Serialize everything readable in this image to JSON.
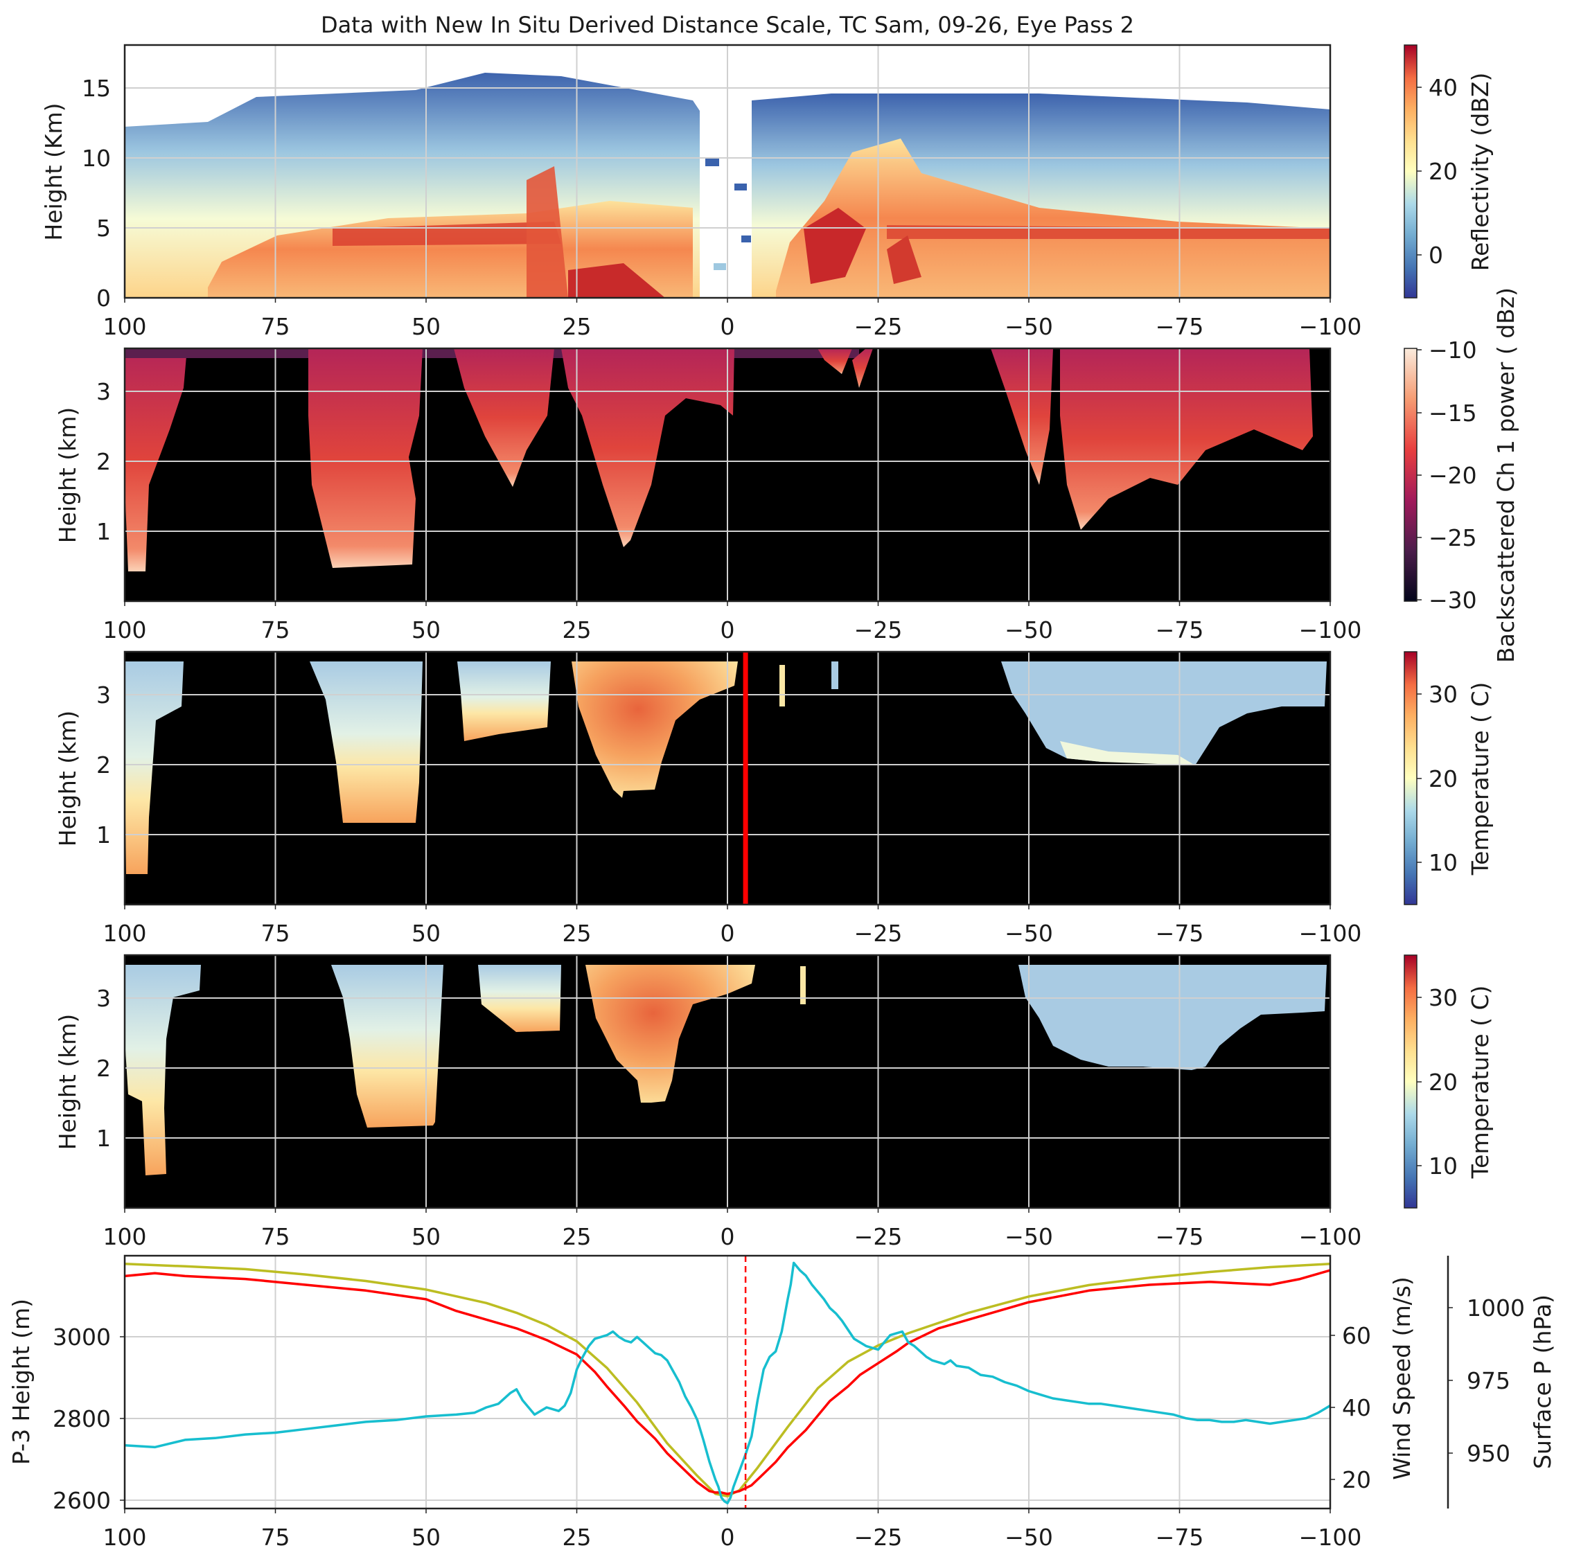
{
  "title": "Data with New In Situ Derived Distance Scale, TC Sam, 09-26, Eye Pass 2",
  "colors": {
    "background": "#ffffff",
    "grid": "#d0d0d0",
    "p3_height": "#bcbd22",
    "wind_speed": "#17becf",
    "surface_p": "#ff0000",
    "eye_marker": "#ff0000",
    "no_data": "#000000"
  },
  "x_axis": {
    "ticks": [
      "100",
      "75",
      "50",
      "25",
      "0",
      "−25",
      "−50",
      "−75",
      "−100"
    ],
    "range": [
      100,
      -100
    ]
  },
  "chart_data": [
    {
      "type": "heatmap",
      "ylabel": "Height (Km)",
      "yticks": [
        "0",
        "5",
        "10",
        "15"
      ],
      "ylim": [
        0,
        18
      ],
      "colorbar": {
        "label": "Reflectivity (dBZ)",
        "ticks": [
          "0",
          "20",
          "40"
        ],
        "range": [
          -9,
          49
        ],
        "colormap": "RdYlBu_r"
      },
      "grid": true
    },
    {
      "type": "heatmap",
      "ylabel": "Height (km)",
      "yticks": [
        "1",
        "2",
        "3"
      ],
      "ylim": [
        0,
        3.6
      ],
      "colorbar": {
        "label": "Backscattered Ch 1 power ( dBz)",
        "ticks": [
          "−10",
          "−15",
          "−20",
          "−25",
          "−30"
        ],
        "range": [
          -30,
          -10
        ],
        "colormap": "rocket"
      },
      "grid": true
    },
    {
      "type": "heatmap",
      "ylabel": "Height (km)",
      "yticks": [
        "1",
        "2",
        "3"
      ],
      "ylim": [
        0,
        3.6
      ],
      "colorbar": {
        "label": "Temperature ( C)",
        "ticks": [
          "10",
          "20",
          "30"
        ],
        "range": [
          5,
          35
        ],
        "colormap": "RdYlBu_r"
      },
      "marker_x": -3,
      "grid": true
    },
    {
      "type": "heatmap",
      "ylabel": "Height (km)",
      "yticks": [
        "1",
        "2",
        "3"
      ],
      "ylim": [
        0,
        3.6
      ],
      "colorbar": {
        "label": "Temperature ( C)",
        "ticks": [
          "10",
          "20",
          "30"
        ],
        "range": [
          5,
          35
        ],
        "colormap": "RdYlBu_r"
      },
      "grid": true
    },
    {
      "type": "line",
      "x_range": [
        100,
        -100
      ],
      "marker_x": -3,
      "axes": [
        {
          "label": "P-3 Height (m)",
          "ticks": [
            "2600",
            "2800",
            "3000"
          ],
          "range": [
            2560,
            3180
          ]
        },
        {
          "label": "Wind Speed (m/s)",
          "ticks": [
            "20",
            "40",
            "60"
          ],
          "range": [
            2,
            72
          ]
        },
        {
          "label": "Surface P (hPa)",
          "ticks": [
            "950",
            "975",
            "1000"
          ],
          "range": [
            928,
            1015
          ]
        }
      ],
      "series": [
        {
          "name": "P-3 Height (m)",
          "axis": 0,
          "x": [
            100,
            90,
            80,
            70,
            60,
            50,
            40,
            35,
            30,
            25,
            20,
            15,
            10,
            5,
            2,
            0,
            -2,
            -5,
            -10,
            -15,
            -20,
            -25,
            -30,
            -40,
            -50,
            -60,
            -70,
            -80,
            -90,
            -100
          ],
          "y": [
            3160,
            3154,
            3147,
            3134,
            3118,
            3097,
            3064,
            3040,
            3010,
            2970,
            2905,
            2820,
            2720,
            2640,
            2596,
            2590,
            2605,
            2660,
            2760,
            2855,
            2920,
            2960,
            2990,
            3040,
            3080,
            3108,
            3126,
            3140,
            3152,
            3160
          ]
        },
        {
          "name": "Wind Speed (m/s)",
          "axis": 1,
          "x": [
            100,
            95,
            90,
            85,
            80,
            75,
            70,
            65,
            60,
            55,
            50,
            45,
            42,
            40,
            38,
            36,
            35,
            34,
            33,
            32,
            30,
            28,
            27,
            26,
            25,
            24,
            23,
            22,
            21,
            20,
            19,
            18,
            17,
            16,
            15,
            14,
            13,
            12,
            11,
            10,
            9,
            8,
            7,
            6,
            5,
            4,
            3,
            2,
            1.5,
            1,
            0.5,
            0,
            -0.5,
            -1,
            -2,
            -3,
            -4,
            -5,
            -6,
            -7,
            -8,
            -9,
            -10,
            -10.5,
            -11,
            -12,
            -13,
            -14,
            -15,
            -16,
            -17,
            -18,
            -19,
            -20,
            -21,
            -22,
            -23,
            -24,
            -25,
            -26,
            -27,
            -28,
            -29,
            -30,
            -31,
            -32,
            -33,
            -34,
            -35,
            -36,
            -37,
            -38,
            -40,
            -42,
            -44,
            -46,
            -48,
            -50,
            -52,
            -54,
            -56,
            -58,
            -60,
            -62,
            -64,
            -66,
            -68,
            -70,
            -72,
            -74,
            -76,
            -78,
            -80,
            -82,
            -84,
            -86,
            -88,
            -90,
            -92,
            -94,
            -96,
            -98,
            -100
          ],
          "y": [
            19.5,
            19.0,
            21.0,
            21.5,
            22.5,
            23.0,
            24.0,
            25.0,
            26.0,
            26.5,
            27.5,
            28.0,
            28.5,
            30.0,
            31.0,
            34.0,
            35.0,
            32.0,
            30.0,
            28.0,
            30.0,
            29.0,
            30.5,
            34.0,
            40.5,
            44.0,
            47.0,
            49.0,
            49.5,
            50.0,
            51.0,
            49.5,
            48.5,
            48.0,
            49.5,
            48.0,
            46.5,
            45.0,
            44.5,
            43.0,
            40.0,
            37.0,
            33.0,
            30.0,
            26.5,
            21.0,
            15.0,
            10.0,
            8.0,
            5.0,
            4.0,
            3.5,
            5.0,
            8.0,
            12.5,
            17.0,
            22.0,
            32.0,
            40.5,
            44.0,
            45.5,
            51.0,
            60.0,
            64.0,
            70.0,
            68.0,
            66.5,
            64.0,
            62.0,
            60.0,
            57.5,
            56.0,
            54.0,
            51.5,
            49.0,
            48.0,
            47.0,
            46.5,
            46.0,
            48.0,
            50.0,
            50.5,
            51.0,
            48.0,
            47.0,
            45.5,
            44.0,
            43.0,
            42.5,
            42.0,
            43.0,
            41.5,
            41.0,
            39.0,
            38.5,
            37.0,
            36.0,
            34.5,
            33.5,
            32.5,
            32.0,
            31.5,
            31.0,
            31.0,
            30.5,
            30.0,
            29.5,
            29.0,
            28.5,
            28.0,
            27.0,
            26.5,
            26.5,
            26.0,
            26.0,
            26.5,
            26.0,
            25.5,
            26.0,
            26.5,
            27.0,
            28.5,
            30.5
          ]
        },
        {
          "name": "Surface P (hPa)",
          "axis": 2,
          "x": [
            100,
            95,
            90,
            80,
            70,
            60,
            50,
            45,
            40,
            35,
            30,
            25,
            22,
            20,
            17,
            15,
            12,
            10,
            7,
            5,
            3,
            2,
            1,
            0,
            -1,
            -2,
            -4,
            -6,
            -8,
            -10,
            -13,
            -15,
            -17,
            -20,
            -22,
            -25,
            -28,
            -30,
            -33,
            -35,
            -40,
            -45,
            -50,
            -55,
            -60,
            -70,
            -80,
            -90,
            -95,
            -100
          ],
          "y": [
            1008,
            1009,
            1008,
            1007,
            1005,
            1003,
            1000,
            996,
            993,
            990,
            986,
            981,
            975,
            970,
            963,
            958,
            952,
            947,
            941,
            937,
            934,
            933.5,
            933.5,
            933,
            933.5,
            934,
            936,
            940,
            944,
            949,
            955,
            960,
            965,
            970,
            974,
            978,
            982,
            985,
            988,
            990,
            993,
            996,
            999,
            1001,
            1003,
            1005,
            1006,
            1005,
            1007,
            1010
          ]
        }
      ],
      "grid": true
    }
  ]
}
